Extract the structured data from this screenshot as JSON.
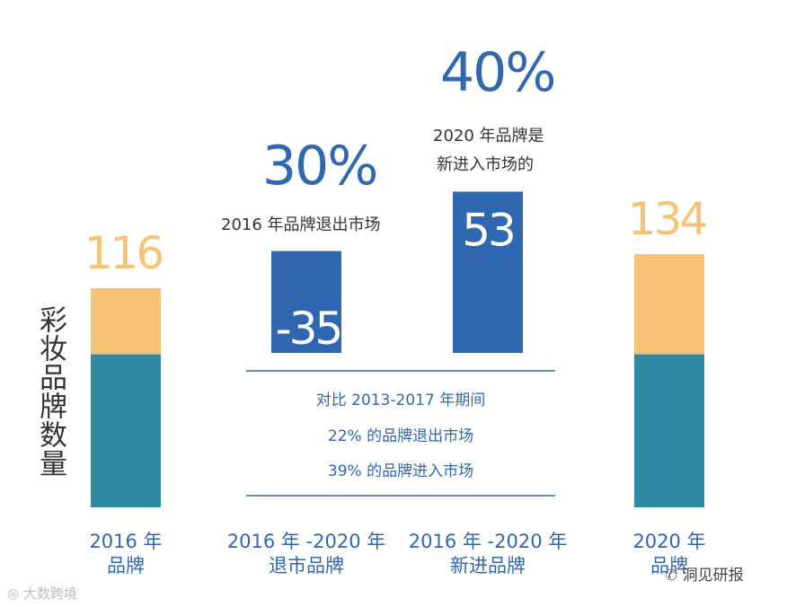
{
  "chart_data": {
    "type": "bar",
    "title": "",
    "ylabel": "彩妆品牌数量",
    "xlabel": "",
    "categories": [
      {
        "line1": "2016 年",
        "line2": "品牌"
      },
      {
        "line1": "2016 年 -2020 年",
        "line2": "退市品牌"
      },
      {
        "line1": "2016 年 -2020 年",
        "line2": "新进品牌"
      },
      {
        "line1": "2020 年",
        "line2": "品牌"
      }
    ],
    "ylim": [
      0,
      140
    ],
    "bars": [
      {
        "total": 116,
        "label": "116",
        "segments": [
          {
            "value": 81,
            "color": "#2e8aa3"
          },
          {
            "value": 35,
            "color": "#f6c275"
          }
        ]
      },
      {
        "total": -35,
        "label": "-35",
        "segments": [
          {
            "value": 35,
            "color": "#2f67b1"
          }
        ]
      },
      {
        "total": 53,
        "label": "53",
        "segments": [
          {
            "value": 53,
            "color": "#2f67b1"
          }
        ]
      },
      {
        "total": 134,
        "label": "134",
        "segments": [
          {
            "value": 81,
            "color": "#2e8aa3"
          },
          {
            "value": 53,
            "color": "#f6c275"
          }
        ]
      }
    ],
    "annotations": {
      "exit_pct": "30%",
      "exit_text": "2016 年品牌退出市场",
      "new_pct": "40%",
      "new_text_line1": "2020 年品牌是",
      "new_text_line2": "新进入市场的",
      "compare_line1": "对比 2013-2017 年期间",
      "compare_line2": "22% 的品牌退出市场",
      "compare_line3": "39% 的品牌进入市场"
    }
  },
  "colors": {
    "teal": "#2e8aa3",
    "orange": "#f6c275",
    "blue": "#2f67b1",
    "dark_text": "#333333"
  },
  "watermark": {
    "right": "洞见研报",
    "left": "大数跨境"
  }
}
